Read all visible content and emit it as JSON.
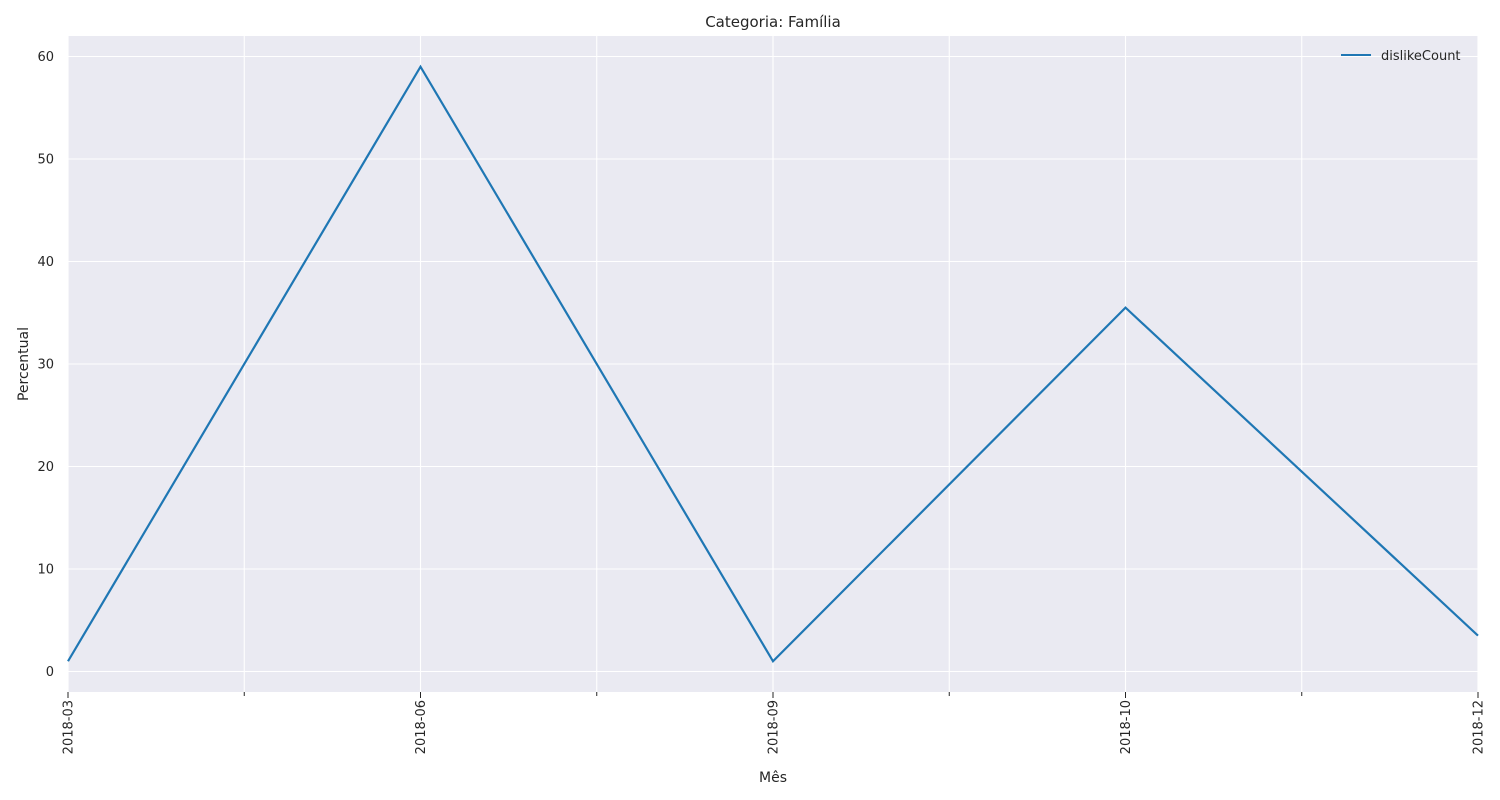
{
  "chart_data": {
    "type": "line",
    "title": "Categoria: Família",
    "xlabel": "Mês",
    "ylabel": "Percentual",
    "categories": [
      "2018-03",
      "2018-06",
      "2018-09",
      "2018-10",
      "2018-12"
    ],
    "series": [
      {
        "name": "dislikeCount",
        "values": [
          1.0,
          59.0,
          1.0,
          35.5,
          3.5
        ],
        "color": "#1f77b4"
      }
    ],
    "ylim": [
      -2,
      62
    ],
    "yticks": [
      0,
      10,
      20,
      30,
      40,
      50,
      60
    ],
    "grid": true,
    "legend_position": "top-right",
    "background": "#eaeaf2"
  }
}
